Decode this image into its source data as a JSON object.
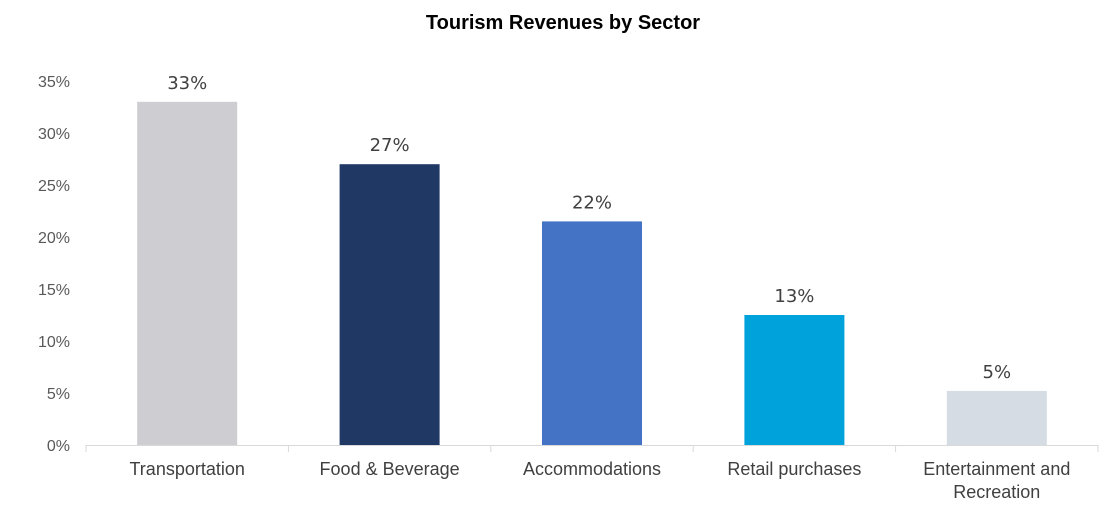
{
  "chart_data": {
    "type": "bar",
    "title": "Tourism Revenues by Sector",
    "xlabel": "",
    "ylabel": "",
    "categories": [
      [
        "Transportation"
      ],
      [
        "Food & Beverage"
      ],
      [
        "Accommodations"
      ],
      [
        "Retail purchases"
      ],
      [
        "Entertainment and",
        "Recreation"
      ]
    ],
    "values": [
      33,
      27,
      21.5,
      12.5,
      5.2
    ],
    "data_labels": [
      "33%",
      "27%",
      "22%",
      "13%",
      "5%"
    ],
    "colors": [
      "#CDCDD2",
      "#203864",
      "#4472C4",
      "#00A2DB",
      "#D5DCE4"
    ],
    "ylim": [
      0,
      35
    ],
    "y_ticks": [
      0,
      5,
      10,
      15,
      20,
      25,
      30,
      35
    ],
    "y_tick_labels": [
      "0%",
      "5%",
      "10%",
      "15%",
      "20%",
      "25%",
      "30%",
      "35%"
    ],
    "grid": false,
    "legend": "none"
  }
}
